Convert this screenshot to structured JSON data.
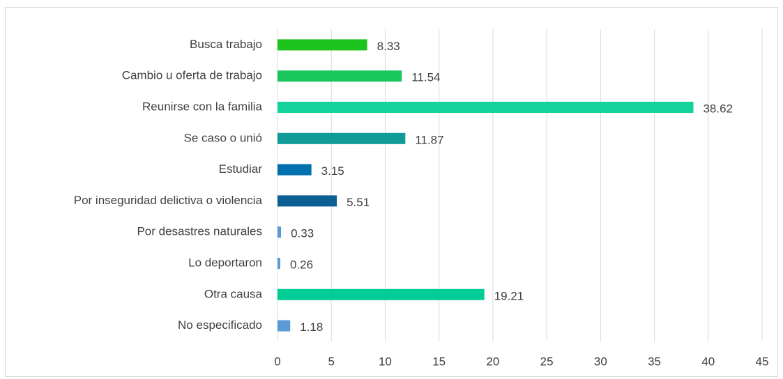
{
  "chart_data": {
    "type": "barh",
    "categories": [
      "Busca trabajo",
      "Cambio u oferta de trabajo",
      "Reunirse con la familia",
      "Se caso o unió",
      "Estudiar",
      "Por inseguridad delictiva o violencia",
      "Por desastres naturales",
      "Lo deportaron",
      "Otra causa",
      "No especificado"
    ],
    "values": [
      8.33,
      11.54,
      38.62,
      11.87,
      3.15,
      5.51,
      0.33,
      0.26,
      19.21,
      1.18
    ],
    "colors": [
      "#1ec41e",
      "#18c65c",
      "#14d29c",
      "#119b98",
      "#0071ad",
      "#0b5f92",
      "#5b9bd5",
      "#5b9bd5",
      "#00cc96",
      "#5b9bd5"
    ],
    "xlim": [
      0,
      45
    ],
    "xticks": [
      0,
      5,
      10,
      15,
      20,
      25,
      30,
      35,
      40,
      45
    ],
    "grid": true
  }
}
